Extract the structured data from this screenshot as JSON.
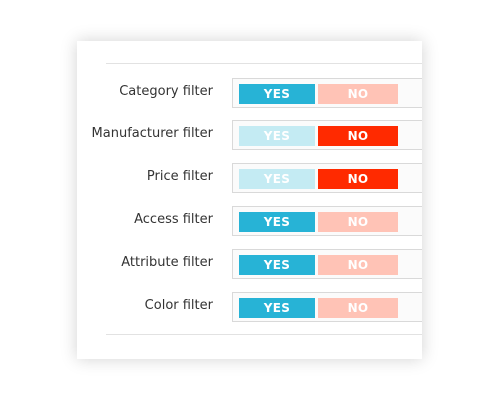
{
  "colors": {
    "yes_active": "#27b3d6",
    "yes_inactive": "#c4ebf3",
    "no_active": "#ff2a00",
    "no_inactive": "#ffc3b6"
  },
  "filters": [
    {
      "label": "Category filter",
      "yes": "YES",
      "no": "NO",
      "value": "yes"
    },
    {
      "label": "Manufacturer filter",
      "yes": "YES",
      "no": "NO",
      "value": "no"
    },
    {
      "label": "Price filter",
      "yes": "YES",
      "no": "NO",
      "value": "no"
    },
    {
      "label": "Access filter",
      "yes": "YES",
      "no": "NO",
      "value": "yes"
    },
    {
      "label": "Attribute filter",
      "yes": "YES",
      "no": "NO",
      "value": "yes"
    },
    {
      "label": "Color filter",
      "yes": "YES",
      "no": "NO",
      "value": "yes"
    }
  ]
}
